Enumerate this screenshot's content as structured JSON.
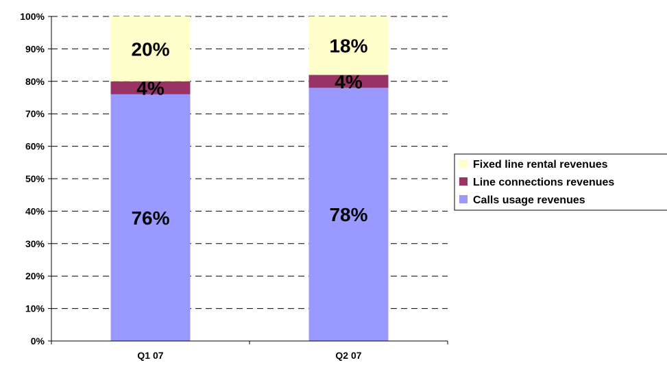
{
  "chart_data": {
    "type": "bar",
    "stacked": true,
    "percent_stacked": true,
    "categories": [
      "Q1 07",
      "Q2 07"
    ],
    "series": [
      {
        "name": "Calls usage revenues",
        "values": [
          76,
          78
        ],
        "labels": [
          "76%",
          "78%"
        ],
        "color": "#9999FF"
      },
      {
        "name": "Line connections revenues",
        "values": [
          4,
          4
        ],
        "labels": [
          "4%",
          "4%"
        ],
        "color": "#993366"
      },
      {
        "name": "Fixed line rental revenues",
        "values": [
          20,
          18
        ],
        "labels": [
          "20%",
          "18%"
        ],
        "color": "#FFFFCC"
      }
    ],
    "y_ticks": [
      "0%",
      "10%",
      "20%",
      "30%",
      "40%",
      "50%",
      "60%",
      "70%",
      "80%",
      "90%",
      "100%"
    ],
    "ylim": [
      0,
      100
    ],
    "grid": true,
    "grid_style": "dashed",
    "legend_position": "right",
    "legend_order": [
      "Fixed line rental revenues",
      "Line connections revenues",
      "Calls usage revenues"
    ],
    "title": "",
    "xlabel": "",
    "ylabel": ""
  }
}
